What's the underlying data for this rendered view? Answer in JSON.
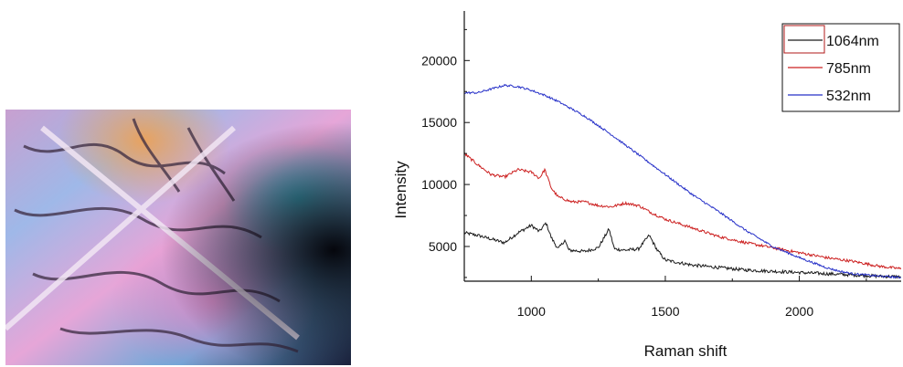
{
  "colors": {
    "series_1064": "#1a1a1a",
    "series_785": "#cc2020",
    "series_532": "#2630c8",
    "legend_border": "#b01818"
  },
  "micrograph": {
    "description_icon": "crystal-micrograph-image"
  },
  "chart_data": {
    "type": "line",
    "xlabel": "Raman shift",
    "ylabel": "Intensity",
    "xlim": [
      750,
      2380
    ],
    "ylim": [
      2200,
      24000
    ],
    "x_ticks": [
      1000,
      1500,
      2000
    ],
    "y_ticks": [
      5000,
      10000,
      15000,
      20000
    ],
    "legend_position": "top-right",
    "grid": false,
    "series": [
      {
        "name": "1064nm",
        "color": "#1a1a1a",
        "points": [
          [
            750,
            6100
          ],
          [
            800,
            5900
          ],
          [
            850,
            5600
          ],
          [
            900,
            5300
          ],
          [
            950,
            6100
          ],
          [
            1000,
            6700
          ],
          [
            1030,
            6200
          ],
          [
            1055,
            6900
          ],
          [
            1075,
            5700
          ],
          [
            1100,
            4800
          ],
          [
            1125,
            5500
          ],
          [
            1140,
            4700
          ],
          [
            1200,
            4600
          ],
          [
            1250,
            4900
          ],
          [
            1290,
            6400
          ],
          [
            1310,
            4800
          ],
          [
            1350,
            4700
          ],
          [
            1400,
            4800
          ],
          [
            1440,
            5900
          ],
          [
            1470,
            4700
          ],
          [
            1500,
            3900
          ],
          [
            1600,
            3500
          ],
          [
            1700,
            3300
          ],
          [
            1800,
            3100
          ],
          [
            1900,
            3000
          ],
          [
            2000,
            2900
          ],
          [
            2100,
            2800
          ],
          [
            2200,
            2700
          ],
          [
            2300,
            2600
          ],
          [
            2380,
            2550
          ]
        ]
      },
      {
        "name": "785nm",
        "color": "#cc2020",
        "points": [
          [
            750,
            12500
          ],
          [
            800,
            11600
          ],
          [
            850,
            10800
          ],
          [
            900,
            10600
          ],
          [
            950,
            11200
          ],
          [
            1000,
            11000
          ],
          [
            1030,
            10500
          ],
          [
            1050,
            11200
          ],
          [
            1075,
            9700
          ],
          [
            1100,
            9000
          ],
          [
            1150,
            8600
          ],
          [
            1200,
            8600
          ],
          [
            1250,
            8300
          ],
          [
            1300,
            8200
          ],
          [
            1350,
            8500
          ],
          [
            1400,
            8300
          ],
          [
            1450,
            7700
          ],
          [
            1500,
            7200
          ],
          [
            1600,
            6500
          ],
          [
            1700,
            5800
          ],
          [
            1800,
            5300
          ],
          [
            1900,
            4900
          ],
          [
            2000,
            4500
          ],
          [
            2100,
            4100
          ],
          [
            2200,
            3800
          ],
          [
            2300,
            3400
          ],
          [
            2380,
            3200
          ]
        ]
      },
      {
        "name": "532nm",
        "color": "#2630c8",
        "points": [
          [
            750,
            17400
          ],
          [
            800,
            17400
          ],
          [
            850,
            17700
          ],
          [
            900,
            18000
          ],
          [
            950,
            17900
          ],
          [
            1000,
            17600
          ],
          [
            1050,
            17200
          ],
          [
            1100,
            16700
          ],
          [
            1200,
            15500
          ],
          [
            1300,
            14000
          ],
          [
            1400,
            12400
          ],
          [
            1500,
            10800
          ],
          [
            1600,
            9200
          ],
          [
            1700,
            7800
          ],
          [
            1800,
            6300
          ],
          [
            1900,
            5000
          ],
          [
            2000,
            4100
          ],
          [
            2050,
            3700
          ],
          [
            2100,
            3300
          ],
          [
            2150,
            3000
          ],
          [
            2200,
            2800
          ],
          [
            2300,
            2600
          ],
          [
            2380,
            2500
          ]
        ]
      }
    ]
  }
}
